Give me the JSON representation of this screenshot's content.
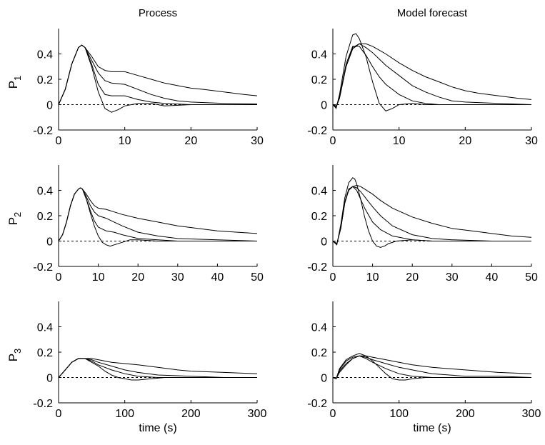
{
  "chart_data": [
    {
      "type": "line",
      "title": "Process",
      "ylabel": "P",
      "ylabel_subscript": "1",
      "xlabel": "",
      "xlim": [
        0,
        30
      ],
      "ylim": [
        -0.2,
        0.6
      ],
      "xticks": [
        0,
        10,
        20,
        30
      ],
      "yticks": [
        -0.2,
        0,
        0.2,
        0.4
      ],
      "grid": false,
      "reference_line": {
        "y": 0,
        "style": "dashed"
      },
      "series": [
        {
          "x": [
            0,
            1,
            2,
            3,
            3.5,
            4,
            5,
            6,
            7,
            8,
            9,
            10,
            12,
            14,
            16,
            18,
            20,
            22,
            25,
            28,
            30
          ],
          "y": [
            0,
            0.12,
            0.32,
            0.45,
            0.47,
            0.45,
            0.38,
            0.3,
            0.27,
            0.26,
            0.26,
            0.26,
            0.23,
            0.2,
            0.17,
            0.15,
            0.13,
            0.12,
            0.1,
            0.08,
            0.07
          ]
        },
        {
          "x": [
            0,
            1,
            2,
            3,
            3.5,
            4,
            5,
            6,
            7,
            8,
            10,
            12,
            14,
            16,
            18,
            20,
            25,
            30
          ],
          "y": [
            0,
            0.12,
            0.32,
            0.45,
            0.47,
            0.45,
            0.35,
            0.25,
            0.19,
            0.17,
            0.16,
            0.12,
            0.08,
            0.05,
            0.03,
            0.02,
            0.01,
            0.005
          ]
        },
        {
          "x": [
            0,
            1,
            2,
            3,
            3.5,
            4,
            5,
            6,
            7,
            8,
            10,
            12,
            14,
            16,
            18,
            20,
            25,
            30
          ],
          "y": [
            0,
            0.12,
            0.32,
            0.45,
            0.47,
            0.45,
            0.32,
            0.16,
            0.08,
            0.07,
            0.07,
            0.04,
            0.02,
            0.01,
            0.005,
            0,
            0,
            0
          ]
        },
        {
          "x": [
            0,
            1,
            2,
            3,
            3.5,
            4,
            5,
            6,
            7,
            8,
            9,
            10,
            12,
            14,
            16,
            18,
            20,
            25,
            30
          ],
          "y": [
            0,
            0.12,
            0.32,
            0.45,
            0.47,
            0.45,
            0.3,
            0.1,
            -0.03,
            -0.06,
            -0.04,
            -0.01,
            0.01,
            0.01,
            -0.01,
            -0.005,
            0,
            0,
            0
          ]
        }
      ]
    },
    {
      "type": "line",
      "title": "Model forecast",
      "ylabel": "",
      "xlabel": "",
      "xlim": [
        0,
        30
      ],
      "ylim": [
        -0.2,
        0.6
      ],
      "xticks": [
        0,
        10,
        20,
        30
      ],
      "yticks": [
        -0.2,
        0,
        0.2,
        0.4
      ],
      "grid": false,
      "reference_line": {
        "y": 0,
        "style": "dashed"
      },
      "series": [
        {
          "x": [
            0,
            0.5,
            1,
            2,
            3,
            4,
            5,
            6,
            7,
            8,
            10,
            12,
            14,
            16,
            18,
            20,
            22,
            25,
            28,
            30
          ],
          "y": [
            0,
            -0.01,
            0.05,
            0.3,
            0.44,
            0.48,
            0.48,
            0.46,
            0.43,
            0.4,
            0.33,
            0.27,
            0.22,
            0.18,
            0.14,
            0.11,
            0.09,
            0.07,
            0.05,
            0.04
          ]
        },
        {
          "x": [
            0,
            0.5,
            1,
            2,
            3,
            4,
            5,
            6,
            7,
            8,
            10,
            12,
            14,
            16,
            18,
            20,
            25,
            30
          ],
          "y": [
            0,
            -0.02,
            0.05,
            0.3,
            0.45,
            0.48,
            0.45,
            0.41,
            0.36,
            0.31,
            0.23,
            0.15,
            0.1,
            0.06,
            0.03,
            0.02,
            0.01,
            0
          ]
        },
        {
          "x": [
            0,
            0.5,
            1,
            2,
            3,
            4,
            5,
            6,
            7,
            8,
            10,
            12,
            14,
            16,
            20,
            25,
            30
          ],
          "y": [
            0,
            -0.02,
            0.06,
            0.32,
            0.46,
            0.46,
            0.39,
            0.3,
            0.22,
            0.16,
            0.08,
            0.03,
            0.01,
            0,
            0,
            0,
            0
          ]
        },
        {
          "x": [
            0,
            0.5,
            1,
            2,
            3,
            3.5,
            4,
            5,
            6,
            7,
            8,
            9,
            10,
            12,
            14,
            16,
            18,
            20,
            25,
            30
          ],
          "y": [
            0,
            -0.03,
            0.08,
            0.38,
            0.55,
            0.56,
            0.52,
            0.38,
            0.18,
            0.01,
            -0.05,
            -0.03,
            0,
            0.01,
            0,
            0,
            0,
            0,
            0,
            0
          ]
        }
      ]
    },
    {
      "type": "line",
      "title": "",
      "ylabel": "P",
      "ylabel_subscript": "2",
      "xlabel": "",
      "xlim": [
        0,
        50
      ],
      "ylim": [
        -0.2,
        0.6
      ],
      "xticks": [
        0,
        10,
        20,
        30,
        40,
        50
      ],
      "yticks": [
        -0.2,
        0,
        0.2,
        0.4
      ],
      "grid": false,
      "reference_line": {
        "y": 0,
        "style": "dashed"
      },
      "series": [
        {
          "x": [
            0,
            1,
            2,
            3,
            4,
            5,
            5.5,
            6,
            7,
            8,
            9,
            10,
            12,
            14,
            16,
            20,
            25,
            30,
            35,
            40,
            45,
            50
          ],
          "y": [
            0,
            0.05,
            0.15,
            0.28,
            0.37,
            0.41,
            0.42,
            0.41,
            0.37,
            0.32,
            0.28,
            0.26,
            0.25,
            0.23,
            0.21,
            0.18,
            0.15,
            0.12,
            0.1,
            0.08,
            0.07,
            0.06
          ]
        },
        {
          "x": [
            0,
            1,
            2,
            3,
            4,
            5,
            5.5,
            6,
            7,
            8,
            9,
            10,
            12,
            14,
            16,
            20,
            25,
            30,
            40,
            50
          ],
          "y": [
            0,
            0.05,
            0.15,
            0.28,
            0.37,
            0.41,
            0.42,
            0.41,
            0.35,
            0.28,
            0.23,
            0.2,
            0.18,
            0.15,
            0.12,
            0.07,
            0.04,
            0.02,
            0.01,
            0
          ]
        },
        {
          "x": [
            0,
            1,
            2,
            3,
            4,
            5,
            5.5,
            6,
            7,
            8,
            9,
            10,
            12,
            14,
            16,
            20,
            25,
            30,
            40,
            50
          ],
          "y": [
            0,
            0.05,
            0.15,
            0.28,
            0.37,
            0.41,
            0.42,
            0.41,
            0.33,
            0.24,
            0.16,
            0.11,
            0.08,
            0.07,
            0.05,
            0.02,
            0.01,
            0,
            0,
            0
          ]
        },
        {
          "x": [
            0,
            1,
            2,
            3,
            4,
            5,
            5.5,
            6,
            7,
            8,
            9,
            10,
            11,
            12,
            13,
            14,
            16,
            18,
            20,
            25,
            30,
            40,
            50
          ],
          "y": [
            0,
            0.05,
            0.15,
            0.28,
            0.37,
            0.41,
            0.42,
            0.41,
            0.33,
            0.22,
            0.12,
            0.04,
            -0.01,
            -0.03,
            -0.04,
            -0.03,
            -0.01,
            0.01,
            0.01,
            0,
            0,
            0,
            0
          ]
        }
      ]
    },
    {
      "type": "line",
      "title": "",
      "ylabel": "",
      "xlabel": "",
      "xlim": [
        0,
        50
      ],
      "ylim": [
        -0.2,
        0.6
      ],
      "xticks": [
        0,
        10,
        20,
        30,
        40,
        50
      ],
      "yticks": [
        -0.2,
        0,
        0.2,
        0.4
      ],
      "grid": false,
      "reference_line": {
        "y": 0,
        "style": "dashed"
      },
      "series": [
        {
          "x": [
            0,
            1,
            2,
            3,
            4,
            5,
            6,
            7,
            8,
            10,
            12,
            15,
            20,
            25,
            30,
            35,
            40,
            45,
            50
          ],
          "y": [
            0,
            -0.02,
            0.1,
            0.3,
            0.4,
            0.43,
            0.44,
            0.43,
            0.41,
            0.37,
            0.32,
            0.26,
            0.19,
            0.14,
            0.1,
            0.08,
            0.06,
            0.04,
            0.03
          ]
        },
        {
          "x": [
            0,
            1,
            2,
            3,
            4,
            5,
            6,
            7,
            8,
            10,
            12,
            15,
            20,
            25,
            30,
            40,
            50
          ],
          "y": [
            0,
            -0.02,
            0.1,
            0.3,
            0.41,
            0.43,
            0.42,
            0.39,
            0.35,
            0.27,
            0.2,
            0.12,
            0.05,
            0.02,
            0.01,
            0,
            0
          ]
        },
        {
          "x": [
            0,
            1,
            2,
            3,
            4,
            5,
            6,
            7,
            8,
            10,
            12,
            15,
            20,
            25,
            30,
            40,
            50
          ],
          "y": [
            0,
            -0.02,
            0.11,
            0.31,
            0.41,
            0.43,
            0.4,
            0.33,
            0.26,
            0.15,
            0.09,
            0.04,
            0.01,
            0,
            0,
            0,
            0
          ]
        },
        {
          "x": [
            0,
            1,
            2,
            3,
            4,
            5,
            5.5,
            6,
            7,
            8,
            9,
            10,
            11,
            12,
            13,
            14,
            16,
            20,
            25,
            30,
            40,
            50
          ],
          "y": [
            0,
            -0.03,
            0.13,
            0.34,
            0.46,
            0.5,
            0.49,
            0.45,
            0.33,
            0.19,
            0.08,
            0,
            -0.04,
            -0.05,
            -0.04,
            -0.02,
            0,
            0.01,
            0,
            0,
            0,
            0
          ]
        }
      ]
    },
    {
      "type": "line",
      "title": "",
      "ylabel": "P",
      "ylabel_subscript": "3",
      "xlabel": "time (s)",
      "xlim": [
        0,
        300
      ],
      "ylim": [
        -0.2,
        0.6
      ],
      "xticks": [
        0,
        100,
        200,
        300
      ],
      "yticks": [
        -0.2,
        0,
        0.2,
        0.4
      ],
      "grid": false,
      "reference_line": {
        "y": 0,
        "style": "dashed"
      },
      "series": [
        {
          "x": [
            0,
            10,
            20,
            30,
            40,
            50,
            60,
            80,
            100,
            120,
            150,
            180,
            200,
            250,
            300
          ],
          "y": [
            0,
            0.06,
            0.12,
            0.15,
            0.15,
            0.15,
            0.14,
            0.12,
            0.11,
            0.1,
            0.08,
            0.06,
            0.05,
            0.04,
            0.03
          ]
        },
        {
          "x": [
            0,
            10,
            20,
            30,
            40,
            50,
            60,
            80,
            100,
            120,
            150,
            200,
            250,
            300
          ],
          "y": [
            0,
            0.06,
            0.12,
            0.15,
            0.15,
            0.14,
            0.12,
            0.09,
            0.06,
            0.04,
            0.02,
            0.01,
            0,
            0
          ]
        },
        {
          "x": [
            0,
            10,
            20,
            30,
            40,
            50,
            60,
            80,
            100,
            120,
            150,
            200,
            300
          ],
          "y": [
            0,
            0.06,
            0.12,
            0.15,
            0.15,
            0.13,
            0.1,
            0.06,
            0.03,
            0.01,
            0,
            0,
            0
          ]
        },
        {
          "x": [
            0,
            10,
            20,
            30,
            40,
            50,
            60,
            70,
            80,
            90,
            100,
            110,
            120,
            140,
            160,
            200,
            300
          ],
          "y": [
            0,
            0.06,
            0.12,
            0.15,
            0.15,
            0.12,
            0.09,
            0.05,
            0.02,
            0,
            -0.01,
            -0.02,
            -0.02,
            -0.01,
            0,
            0,
            0
          ]
        }
      ]
    },
    {
      "type": "line",
      "title": "",
      "ylabel": "",
      "xlabel": "time (s)",
      "xlim": [
        0,
        300
      ],
      "ylim": [
        -0.2,
        0.6
      ],
      "xticks": [
        0,
        100,
        200,
        300
      ],
      "yticks": [
        -0.2,
        0,
        0.2,
        0.4
      ],
      "grid": false,
      "reference_line": {
        "y": 0,
        "style": "dashed"
      },
      "series": [
        {
          "x": [
            0,
            5,
            10,
            20,
            30,
            40,
            50,
            60,
            80,
            100,
            120,
            150,
            200,
            250,
            300
          ],
          "y": [
            0,
            -0.01,
            0.04,
            0.1,
            0.15,
            0.17,
            0.17,
            0.16,
            0.14,
            0.12,
            0.1,
            0.08,
            0.06,
            0.04,
            0.03
          ]
        },
        {
          "x": [
            0,
            5,
            10,
            20,
            30,
            40,
            50,
            60,
            80,
            100,
            120,
            150,
            200,
            250,
            300
          ],
          "y": [
            0,
            -0.01,
            0.05,
            0.11,
            0.15,
            0.17,
            0.16,
            0.14,
            0.11,
            0.08,
            0.06,
            0.03,
            0.01,
            0.01,
            0
          ]
        },
        {
          "x": [
            0,
            5,
            10,
            20,
            30,
            40,
            50,
            60,
            80,
            100,
            120,
            150,
            200,
            300
          ],
          "y": [
            0,
            -0.01,
            0.06,
            0.13,
            0.16,
            0.17,
            0.15,
            0.12,
            0.07,
            0.03,
            0.01,
            0,
            0,
            0
          ]
        },
        {
          "x": [
            0,
            5,
            10,
            20,
            30,
            40,
            50,
            60,
            70,
            80,
            90,
            100,
            110,
            120,
            140,
            200,
            300
          ],
          "y": [
            0,
            -0.01,
            0.07,
            0.14,
            0.17,
            0.19,
            0.17,
            0.13,
            0.08,
            0.03,
            -0.01,
            -0.02,
            -0.02,
            -0.01,
            0,
            0,
            0
          ]
        }
      ]
    }
  ]
}
